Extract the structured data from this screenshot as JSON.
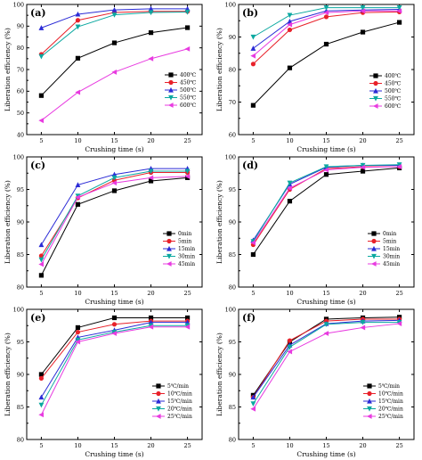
{
  "chart_data": [
    {
      "type": "line",
      "panel_label": "(a)",
      "xlabel": "Crushing time (s)",
      "ylabel": "Liberation efficiency (%)",
      "x": [
        5,
        10,
        15,
        20,
        25
      ],
      "xticks": [
        5,
        10,
        15,
        20,
        25
      ],
      "ylim": [
        40,
        100
      ],
      "yticks": [
        40,
        50,
        60,
        70,
        80,
        90,
        100
      ],
      "legend_position": "center-right",
      "series": [
        {
          "name": "400℃",
          "color": "#000000",
          "marker": "square",
          "values": [
            58,
            75.2,
            82.3,
            87,
            89.3
          ]
        },
        {
          "name": "450℃",
          "color": "#e8212a",
          "marker": "circle",
          "values": [
            77,
            92.7,
            96.3,
            96.8,
            96.8
          ]
        },
        {
          "name": "500℃",
          "color": "#2b2bd6",
          "marker": "triangle-up",
          "values": [
            89.2,
            95.5,
            97.5,
            98,
            98
          ]
        },
        {
          "name": "550℃",
          "color": "#0ca8a0",
          "marker": "triangle-down",
          "values": [
            76,
            89.7,
            95.2,
            96.3,
            96.5
          ]
        },
        {
          "name": "600℃",
          "color": "#e83be0",
          "marker": "triangle-left",
          "values": [
            46.5,
            59.5,
            68.8,
            75,
            79.5
          ]
        }
      ]
    },
    {
      "type": "line",
      "panel_label": "(b)",
      "xlabel": "Crushing time (s)",
      "ylabel": "Liberation efficiency (%)",
      "x": [
        5,
        10,
        15,
        20,
        25
      ],
      "xticks": [
        5,
        10,
        15,
        20,
        25
      ],
      "ylim": [
        60,
        100
      ],
      "yticks": [
        60,
        70,
        80,
        90,
        100
      ],
      "legend_position": "bottom-right",
      "series": [
        {
          "name": "400℃",
          "color": "#000000",
          "marker": "square",
          "values": [
            69,
            80.5,
            87.8,
            91.5,
            94.5
          ]
        },
        {
          "name": "450℃",
          "color": "#e8212a",
          "marker": "circle",
          "values": [
            81.7,
            92.2,
            96.2,
            97.5,
            97.7
          ]
        },
        {
          "name": "500℃",
          "color": "#2b2bd6",
          "marker": "triangle-up",
          "values": [
            86.5,
            94.8,
            98,
            98.3,
            98.5
          ]
        },
        {
          "name": "550℃",
          "color": "#0ca8a0",
          "marker": "triangle-down",
          "values": [
            90,
            96.7,
            99,
            99,
            99
          ]
        },
        {
          "name": "600℃",
          "color": "#e83be0",
          "marker": "triangle-left",
          "values": [
            84.2,
            93.8,
            97.5,
            98,
            98
          ]
        }
      ]
    },
    {
      "type": "line",
      "panel_label": "(c)",
      "xlabel": "Crushing time (s)",
      "ylabel": "Liberation efficiency (%)",
      "x": [
        5,
        10,
        15,
        20,
        25
      ],
      "xticks": [
        5,
        10,
        15,
        20,
        25
      ],
      "ylim": [
        80,
        100
      ],
      "yticks": [
        80,
        85,
        90,
        95,
        100
      ],
      "legend_position": "bottom-right",
      "series": [
        {
          "name": "0min",
          "color": "#000000",
          "marker": "square",
          "values": [
            81.8,
            92.7,
            94.8,
            96.3,
            96.8
          ]
        },
        {
          "name": "5min",
          "color": "#e8212a",
          "marker": "circle",
          "values": [
            84.8,
            93.7,
            96.4,
            97.6,
            97.6
          ]
        },
        {
          "name": "15min",
          "color": "#2b2bd6",
          "marker": "triangle-up",
          "values": [
            86.5,
            95.7,
            97.3,
            98.2,
            98.2
          ]
        },
        {
          "name": "30min",
          "color": "#0ca8a0",
          "marker": "triangle-down",
          "values": [
            84.2,
            94,
            96.8,
            97.8,
            97.8
          ]
        },
        {
          "name": "45min",
          "color": "#e83be0",
          "marker": "triangle-left",
          "values": [
            83.5,
            93.8,
            96,
            96.8,
            97
          ]
        }
      ]
    },
    {
      "type": "line",
      "panel_label": "(d)",
      "xlabel": "Crushing time (s)",
      "ylabel": "Liberation efficiency (%)",
      "x": [
        5,
        10,
        15,
        20,
        25
      ],
      "xticks": [
        5,
        10,
        15,
        20,
        25
      ],
      "ylim": [
        80,
        100
      ],
      "yticks": [
        80,
        85,
        90,
        95,
        100
      ],
      "legend_position": "bottom-right",
      "series": [
        {
          "name": "0min",
          "color": "#000000",
          "marker": "square",
          "values": [
            85,
            93.2,
            97.3,
            97.8,
            98.3
          ]
        },
        {
          "name": "5min",
          "color": "#e8212a",
          "marker": "circle",
          "values": [
            86.5,
            95,
            98.2,
            98.5,
            98.5
          ]
        },
        {
          "name": "15min",
          "color": "#2b2bd6",
          "marker": "triangle-up",
          "values": [
            87.2,
            95.8,
            98.4,
            98.7,
            98.7
          ]
        },
        {
          "name": "30min",
          "color": "#0ca8a0",
          "marker": "triangle-down",
          "values": [
            87,
            96,
            98.5,
            98.7,
            98.8
          ]
        },
        {
          "name": "45min",
          "color": "#e83be0",
          "marker": "triangle-left",
          "values": [
            86.8,
            95.2,
            98,
            98.4,
            98.5
          ]
        }
      ]
    },
    {
      "type": "line",
      "panel_label": "(e)",
      "xlabel": "Crushing time (s)",
      "ylabel": "Liberation efficiency (%)",
      "x": [
        5,
        10,
        15,
        20,
        25
      ],
      "xticks": [
        5,
        10,
        15,
        20,
        25
      ],
      "ylim": [
        80,
        100
      ],
      "yticks": [
        80,
        85,
        90,
        95,
        100
      ],
      "legend_position": "bottom-right",
      "series": [
        {
          "name": "5℃/min",
          "color": "#000000",
          "marker": "square",
          "values": [
            90,
            97.2,
            98.7,
            98.7,
            98.7
          ]
        },
        {
          "name": "10℃/min",
          "color": "#e8212a",
          "marker": "circle",
          "values": [
            89.4,
            96.5,
            97.7,
            98.2,
            98.2
          ]
        },
        {
          "name": "15℃/min",
          "color": "#2b2bd6",
          "marker": "triangle-up",
          "values": [
            86.5,
            95.7,
            96.8,
            98,
            98
          ]
        },
        {
          "name": "20℃/min",
          "color": "#0ca8a0",
          "marker": "triangle-down",
          "values": [
            85.3,
            95.3,
            96.5,
            97.5,
            97.5
          ]
        },
        {
          "name": "25℃/min",
          "color": "#e83be0",
          "marker": "triangle-left",
          "values": [
            83.8,
            95,
            96.3,
            97.3,
            97.3
          ]
        }
      ]
    },
    {
      "type": "line",
      "panel_label": "(f)",
      "xlabel": "Crushing time (s)",
      "ylabel": "Liberation efficiency (%)",
      "x": [
        5,
        10,
        15,
        20,
        25
      ],
      "xticks": [
        5,
        10,
        15,
        20,
        25
      ],
      "ylim": [
        80,
        100
      ],
      "yticks": [
        80,
        85,
        90,
        95,
        100
      ],
      "legend_position": "bottom-right",
      "series": [
        {
          "name": "5℃/min",
          "color": "#000000",
          "marker": "square",
          "values": [
            86.8,
            95,
            98.5,
            98.7,
            98.8
          ]
        },
        {
          "name": "10℃/min",
          "color": "#e8212a",
          "marker": "circle",
          "values": [
            86.5,
            95.2,
            98.2,
            98.5,
            98.5
          ]
        },
        {
          "name": "15℃/min",
          "color": "#2b2bd6",
          "marker": "triangle-up",
          "values": [
            86.5,
            94.5,
            97.8,
            98.2,
            98.3
          ]
        },
        {
          "name": "20℃/min",
          "color": "#0ca8a0",
          "marker": "triangle-down",
          "values": [
            85.5,
            94.2,
            97.7,
            98,
            98
          ]
        },
        {
          "name": "25℃/min",
          "color": "#e83be0",
          "marker": "triangle-left",
          "values": [
            84.7,
            93.5,
            96.3,
            97.2,
            97.8
          ]
        }
      ]
    }
  ]
}
